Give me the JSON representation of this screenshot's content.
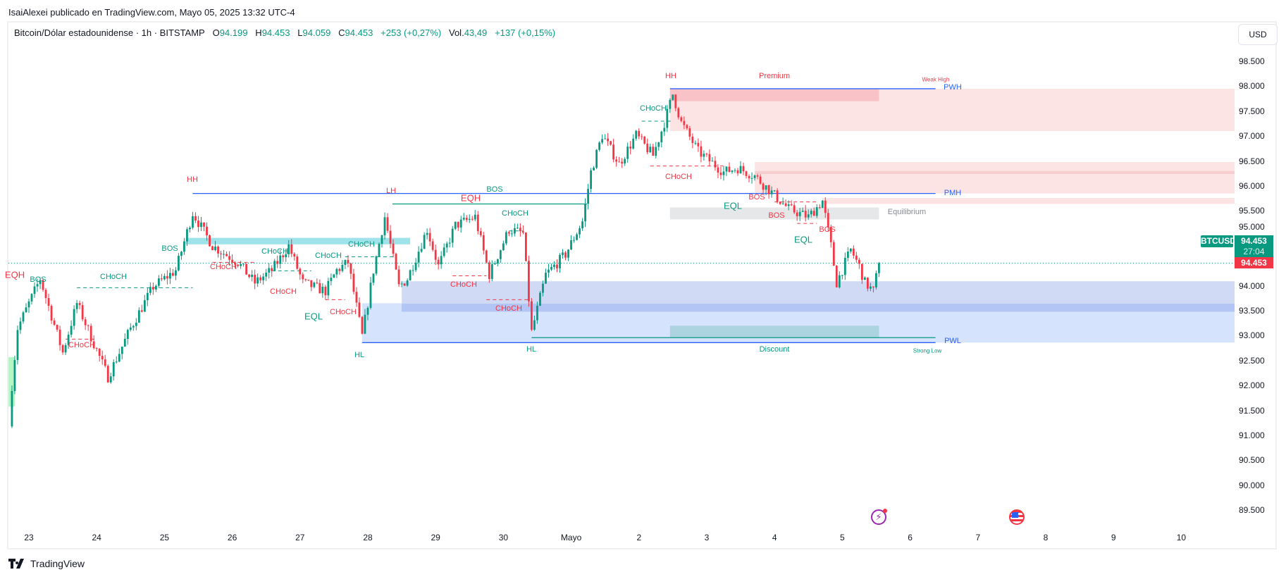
{
  "header": {
    "publisher": "IsaiAlexei publicado en TradingView.com, Mayo 05, 2025 13:32 UTC-4"
  },
  "legend": {
    "symbol": "Bitcoin/Dólar estadounidense · 1h · BITSTAMP",
    "o_label": "O",
    "o": "94.199",
    "h_label": "H",
    "h": "94.453",
    "l_label": "L",
    "l": "94.059",
    "c_label": "C",
    "c": "94.453",
    "change": "+253 (+0,27%)",
    "vol_label": "Vol.",
    "vol": "43,49",
    "vol_change": "+137 (+0,15%)"
  },
  "currency": "USD",
  "price_badge": {
    "symbol": "BTCUSD",
    "price": "94.453",
    "countdown": "27:04",
    "bid": "94.453"
  },
  "colors": {
    "up": "#089981",
    "down": "#f23645",
    "structure_blue": "#2962ff",
    "premium": "#fce4e5",
    "discount": "#d6e3fd"
  },
  "footer": {
    "brand": "TradingView"
  },
  "chart_data": {
    "type": "candlestick",
    "title": "Bitcoin/Dólar estadounidense · 1h · BITSTAMP",
    "ylabel": "USD (thousands)",
    "ylim": [
      89.2,
      98.8
    ],
    "y_ticks": [
      "98.500",
      "98.000",
      "97.500",
      "97.000",
      "96.500",
      "96.000",
      "95.500",
      "95.000",
      "94.000",
      "93.500",
      "93.000",
      "92.500",
      "92.000",
      "91.500",
      "91.000",
      "90.500",
      "90.000",
      "89.500"
    ],
    "x_ticks": [
      "23",
      "24",
      "25",
      "26",
      "27",
      "28",
      "29",
      "30",
      "Mayo",
      "2",
      "3",
      "4",
      "5",
      "6",
      "7",
      "8",
      "9",
      "10"
    ],
    "x_unit": "hours since Apr 23 00:00",
    "last_close": 94.453,
    "price_path": [
      [
        -7,
        91.18
      ],
      [
        -6,
        92.0
      ],
      [
        -4,
        93.15
      ],
      [
        4,
        94.14
      ],
      [
        12,
        92.66
      ],
      [
        17,
        93.65
      ],
      [
        28,
        92.17
      ],
      [
        36,
        93.15
      ],
      [
        44,
        93.98
      ],
      [
        52,
        94.31
      ],
      [
        58,
        95.46
      ],
      [
        65,
        94.8
      ],
      [
        74,
        94.47
      ],
      [
        80,
        94.06
      ],
      [
        86,
        94.31
      ],
      [
        92,
        94.8
      ],
      [
        97,
        94.06
      ],
      [
        105,
        93.89
      ],
      [
        109,
        94.31
      ],
      [
        113,
        94.47
      ],
      [
        118,
        92.99
      ],
      [
        122,
        94.31
      ],
      [
        126,
        95.38
      ],
      [
        131,
        93.98
      ],
      [
        134,
        94.14
      ],
      [
        141,
        95.13
      ],
      [
        145,
        94.39
      ],
      [
        151,
        95.21
      ],
      [
        158,
        95.38
      ],
      [
        163,
        94.22
      ],
      [
        170,
        95.13
      ],
      [
        175,
        95.05
      ],
      [
        178,
        93.07
      ],
      [
        183,
        94.22
      ],
      [
        190,
        94.63
      ],
      [
        196,
        95.29
      ],
      [
        199,
        96.28
      ],
      [
        203,
        97.02
      ],
      [
        209,
        96.44
      ],
      [
        215,
        97.02
      ],
      [
        221,
        96.61
      ],
      [
        225,
        97.27
      ],
      [
        228,
        97.84
      ],
      [
        231,
        97.27
      ],
      [
        237,
        96.69
      ],
      [
        246,
        96.28
      ],
      [
        251,
        96.36
      ],
      [
        257,
        96.2
      ],
      [
        263,
        95.87
      ],
      [
        269,
        95.54
      ],
      [
        276,
        95.38
      ],
      [
        281,
        95.7
      ],
      [
        284,
        94.8
      ],
      [
        286,
        94.06
      ],
      [
        291,
        94.72
      ],
      [
        294,
        94.39
      ],
      [
        296,
        94.06
      ],
      [
        299,
        93.89
      ],
      [
        301,
        94.453
      ]
    ],
    "zones": [
      {
        "name": "premium-zone",
        "from": 227,
        "to": "edge",
        "top": 97.95,
        "bottom": 97.1,
        "color": "#fce4e5"
      },
      {
        "name": "premium-ob",
        "from": 227,
        "to": 301,
        "top": 97.95,
        "bottom": 97.7,
        "color": "#f9c2c6"
      },
      {
        "name": "supply-zone",
        "from": 257,
        "to": "edge",
        "top": 96.48,
        "bottom": 95.85,
        "color": "#fce4e5"
      },
      {
        "name": "supply-line",
        "from": 257,
        "to": "edge",
        "top": 96.3,
        "bottom": 96.24,
        "color": "#f7cdd0"
      },
      {
        "name": "supply-zone-2",
        "from": 281,
        "to": "edge",
        "top": 95.76,
        "bottom": 95.64,
        "color": "#fce4e5"
      },
      {
        "name": "equilibrium-zone",
        "from": 227,
        "to": 301,
        "top": 95.57,
        "bottom": 95.33,
        "color": "#e6e7e9"
      },
      {
        "name": "discount-zone",
        "from": 118,
        "to": "edge",
        "top": 93.65,
        "bottom": 92.86,
        "color": "#d6e3fd"
      },
      {
        "name": "demand-ob",
        "from": 132,
        "to": "edge",
        "top": 94.09,
        "bottom": 93.48,
        "color": "#d0daf5"
      },
      {
        "name": "demand-ob-core",
        "from": 132,
        "to": "edge",
        "top": 93.64,
        "bottom": 93.48,
        "color": "#b2c5f4"
      },
      {
        "name": "discount-teal",
        "from": 227,
        "to": 301,
        "top": 93.2,
        "bottom": 92.96,
        "color": "#acd4e0"
      },
      {
        "name": "fvg-band",
        "from": 55.5,
        "to": 135,
        "top": 94.96,
        "bottom": 94.83,
        "color": "#9fe3ea"
      }
    ],
    "levels": [
      {
        "name": "pwh-line",
        "price": 97.95,
        "from": 227,
        "to": 321,
        "color": "#2962ff"
      },
      {
        "name": "pmh-line",
        "price": 95.85,
        "from": 58,
        "to": 321,
        "color": "#2962ff"
      },
      {
        "name": "pwl-line",
        "price": 92.86,
        "from": 118,
        "to": 321,
        "color": "#2962ff"
      },
      {
        "name": "strong-low-line",
        "price": 92.96,
        "from": 178,
        "to": 321,
        "color": "#089981"
      },
      {
        "name": "lh-line",
        "price": 95.64,
        "from": 128.7,
        "to": 197.6,
        "color": "#089981"
      }
    ],
    "annotations": [
      {
        "text": "HH",
        "color": "#f23645"
      },
      {
        "text": "BOS",
        "color": "#089981"
      },
      {
        "text": "EQH",
        "color": "#f23645"
      },
      {
        "text": "BOS",
        "color": "#089981"
      },
      {
        "text": "CHoCH",
        "color": "#089981"
      },
      {
        "text": "CHoCH",
        "color": "#f23645"
      },
      {
        "text": "CHoCH",
        "color": "#f23645"
      },
      {
        "text": "CHoCH",
        "color": "#089981"
      },
      {
        "text": "CHoCH",
        "color": "#f23645"
      },
      {
        "text": "CHoCH",
        "color": "#089981"
      },
      {
        "text": "EQL",
        "color": "#089981"
      },
      {
        "text": "CHoCH",
        "color": "#089981"
      },
      {
        "text": "CHoCH",
        "color": "#f23645"
      },
      {
        "text": "HL",
        "color": "#089981"
      },
      {
        "text": "LH",
        "color": "#f23645"
      },
      {
        "text": "EQH",
        "color": "#f23645"
      },
      {
        "text": "BOS",
        "color": "#089981"
      },
      {
        "text": "CHoCH",
        "color": "#089981"
      },
      {
        "text": "CHoCH",
        "color": "#f23645"
      },
      {
        "text": "CHoCH",
        "color": "#f23645"
      },
      {
        "text": "HL",
        "color": "#089981"
      },
      {
        "text": "HH",
        "color": "#f23645"
      },
      {
        "text": "Premium",
        "color": "#f23645"
      },
      {
        "text": "Weak High",
        "color": "#f23645"
      },
      {
        "text": "CHoCH",
        "color": "#089981"
      },
      {
        "text": "CHoCH",
        "color": "#f23645"
      },
      {
        "text": "EQL",
        "color": "#089981"
      },
      {
        "text": "BOS",
        "color": "#f23645"
      },
      {
        "text": "BOS",
        "color": "#f23645"
      },
      {
        "text": "Equilibrium",
        "color": "#868993"
      },
      {
        "text": "EQL",
        "color": "#089981"
      },
      {
        "text": "BOS",
        "color": "#f23645"
      },
      {
        "text": "PWH",
        "color": "#2962ff"
      },
      {
        "text": "PMH",
        "color": "#2962ff"
      },
      {
        "text": "PWL",
        "color": "#2962ff"
      },
      {
        "text": "Strong Low",
        "color": "#089981"
      },
      {
        "text": "Discount",
        "color": "#089981"
      }
    ]
  }
}
